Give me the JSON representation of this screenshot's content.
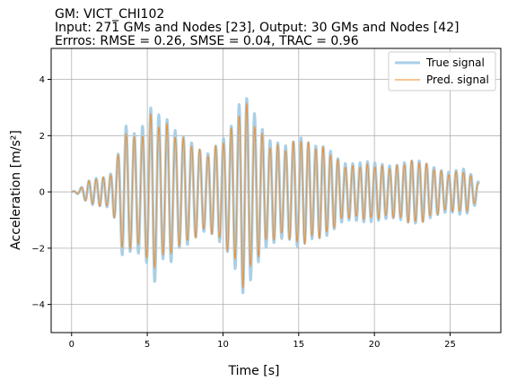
{
  "chart_data": {
    "type": "line",
    "title_lines": [
      "GM: VICT_CHI102",
      "Input: 271 GMs and Nodes [23], Output: 30 GMs and Nodes [42]",
      "Errros: RMSE = 0.26, SMSE = 0.04, TRAC = 0.96"
    ],
    "xlabel": "Time [s]",
    "ylabel": "Acceleration [m/s²]",
    "xlim": [
      -1.35,
      28.35
    ],
    "ylim": [
      -5.0,
      5.1
    ],
    "xticks": [
      0,
      5,
      10,
      15,
      20,
      25
    ],
    "yticks": [
      -4,
      -2,
      0,
      2,
      4
    ],
    "grid": true,
    "legend_position": "top-right",
    "series": [
      {
        "name": "True signal",
        "color": "#a9cfe6",
        "kind": "synthetic-oscillation",
        "x_start": 0,
        "x_end": 26.9,
        "sample_dt": 0.02,
        "peak_envelope": [
          [
            0.0,
            0.0
          ],
          [
            0.5,
            0.1
          ],
          [
            1.0,
            0.4
          ],
          [
            1.5,
            0.6
          ],
          [
            2.0,
            0.7
          ],
          [
            2.5,
            0.8
          ],
          [
            3.0,
            1.5
          ],
          [
            3.4,
            3.0
          ],
          [
            4.0,
            2.3
          ],
          [
            4.5,
            2.6
          ],
          [
            5.0,
            3.2
          ],
          [
            5.4,
            4.3
          ],
          [
            6.0,
            2.8
          ],
          [
            6.4,
            2.9
          ],
          [
            7.0,
            2.0
          ],
          [
            7.5,
            2.0
          ],
          [
            8.0,
            1.9
          ],
          [
            9.0,
            1.6
          ],
          [
            9.5,
            1.8
          ],
          [
            10.0,
            2.0
          ],
          [
            10.5,
            2.5
          ],
          [
            11.0,
            3.6
          ],
          [
            11.3,
            4.7
          ],
          [
            11.8,
            4.4
          ],
          [
            12.5,
            3.0
          ],
          [
            13.0,
            2.2
          ],
          [
            14.0,
            2.0
          ],
          [
            14.5,
            2.3
          ],
          [
            15.0,
            2.7
          ],
          [
            15.5,
            2.2
          ],
          [
            16.0,
            1.8
          ],
          [
            17.0,
            1.6
          ],
          [
            18.0,
            1.2
          ],
          [
            19.0,
            1.1
          ],
          [
            20.0,
            1.1
          ],
          [
            21.0,
            1.2
          ],
          [
            22.0,
            1.3
          ],
          [
            23.0,
            1.3
          ],
          [
            24.0,
            1.2
          ],
          [
            25.0,
            0.9
          ],
          [
            26.0,
            0.9
          ],
          [
            26.9,
            0.4
          ]
        ]
      },
      {
        "name": "Pred. signal",
        "color": "#f28e2b",
        "kind": "synthetic-oscillation",
        "x_start": 0,
        "x_end": 26.9,
        "sample_dt": 0.02,
        "amplitude_ratio": 0.93
      }
    ]
  }
}
